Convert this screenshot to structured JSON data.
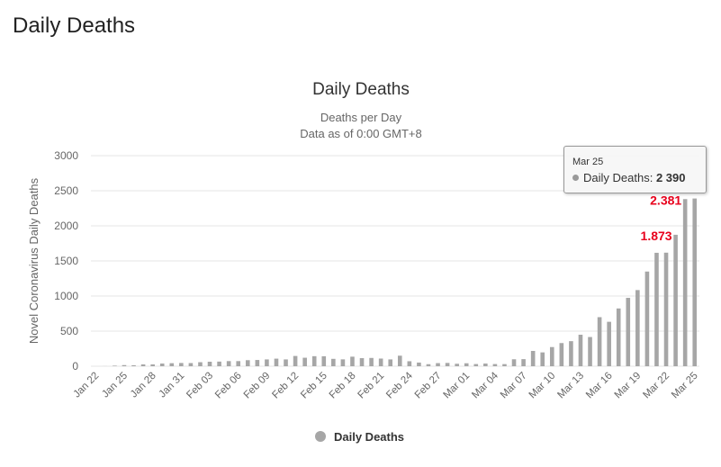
{
  "page": {
    "heading": "Daily Deaths"
  },
  "colors": {
    "bar": "#a6a6a6",
    "grid": "#e6e6e6",
    "axis_text": "#666666",
    "annotation": "#e8001c"
  },
  "chart_data": {
    "type": "bar",
    "title": "Daily Deaths",
    "subtitle_line1": "Deaths per Day",
    "subtitle_line2": "Data as of 0:00 GMT+8",
    "ylabel": "Novel Coronavirus Daily Deaths",
    "xlabel": "",
    "ylim": [
      0,
      3000
    ],
    "yticks": [
      "0",
      "500",
      "1000",
      "1500",
      "2000",
      "2500",
      "3000"
    ],
    "grid": true,
    "legend": {
      "position": "bottom-center",
      "label": "Daily Deaths"
    },
    "categories": [
      "Jan 22",
      "Jan 23",
      "Jan 24",
      "Jan 25",
      "Jan 26",
      "Jan 27",
      "Jan 28",
      "Jan 29",
      "Jan 30",
      "Jan 31",
      "Feb 01",
      "Feb 02",
      "Feb 03",
      "Feb 04",
      "Feb 05",
      "Feb 06",
      "Feb 07",
      "Feb 08",
      "Feb 09",
      "Feb 10",
      "Feb 11",
      "Feb 12",
      "Feb 13",
      "Feb 14",
      "Feb 15",
      "Feb 16",
      "Feb 17",
      "Feb 18",
      "Feb 19",
      "Feb 20",
      "Feb 21",
      "Feb 22",
      "Feb 23",
      "Feb 24",
      "Feb 25",
      "Feb 26",
      "Feb 27",
      "Feb 28",
      "Feb 29",
      "Mar 01",
      "Mar 02",
      "Mar 03",
      "Mar 04",
      "Mar 05",
      "Mar 06",
      "Mar 07",
      "Mar 08",
      "Mar 09",
      "Mar 10",
      "Mar 11",
      "Mar 12",
      "Mar 13",
      "Mar 14",
      "Mar 15",
      "Mar 16",
      "Mar 17",
      "Mar 18",
      "Mar 19",
      "Mar 20",
      "Mar 21",
      "Mar 22",
      "Mar 23",
      "Mar 24",
      "Mar 25"
    ],
    "tick_labels": [
      "Jan 22",
      "Jan 25",
      "Jan 28",
      "Jan 31",
      "Feb 03",
      "Feb 06",
      "Feb 09",
      "Feb 12",
      "Feb 15",
      "Feb 18",
      "Feb 21",
      "Feb 24",
      "Feb 27",
      "Mar 01",
      "Mar 04",
      "Mar 07",
      "Mar 10",
      "Mar 13",
      "Mar 16",
      "Mar 19",
      "Mar 22",
      "Mar 25"
    ],
    "series": [
      {
        "name": "Daily Deaths",
        "values": [
          0,
          1,
          8,
          16,
          14,
          26,
          26,
          38,
          43,
          46,
          45,
          57,
          64,
          66,
          73,
          73,
          86,
          89,
          97,
          108,
          97,
          146,
          121,
          143,
          142,
          105,
          98,
          136,
          115,
          118,
          109,
          97,
          150,
          71,
          52,
          29,
          44,
          47,
          35,
          42,
          31,
          38,
          31,
          30,
          99,
          101,
          218,
          197,
          273,
          330,
          357,
          449,
          416,
          699,
          633,
          823,
          974,
          1085,
          1349,
          1616,
          1618,
          1873,
          2381,
          2390
        ]
      }
    ],
    "annotations": [
      {
        "category": "Mar 23",
        "text": "1.873"
      },
      {
        "category": "Mar 24",
        "text": "2.381"
      }
    ],
    "tooltip": {
      "date": "Mar 25",
      "series": "Daily Deaths",
      "value": "2 390"
    }
  }
}
